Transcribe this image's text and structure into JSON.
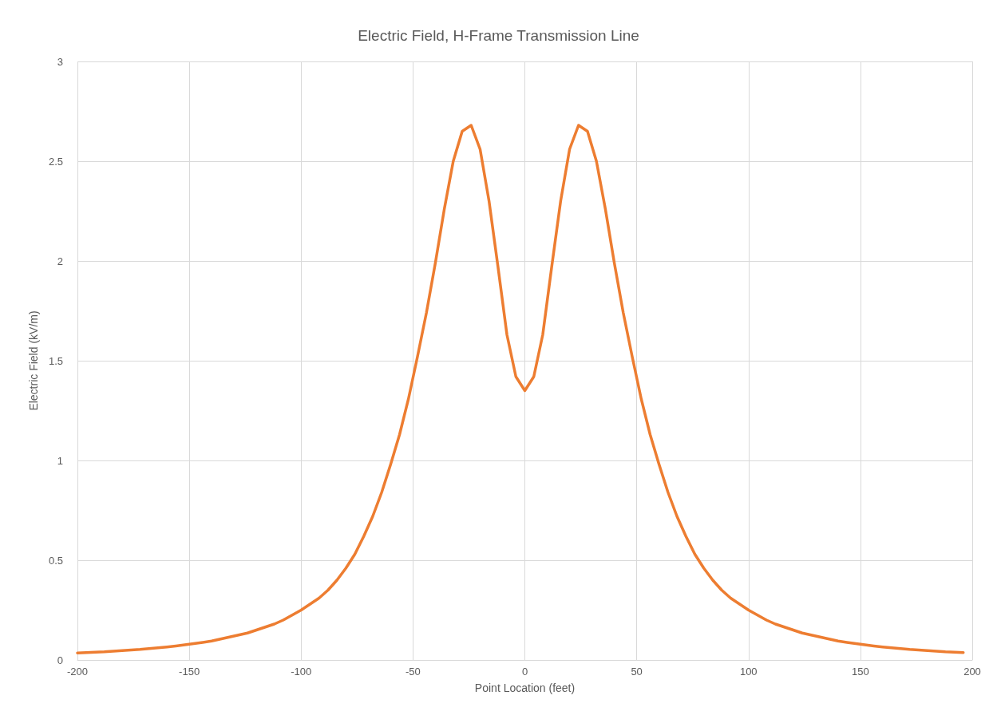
{
  "chart_data": {
    "type": "line",
    "title": "Electric Field, H-Frame Transmission Line",
    "xlabel": "Point Location (feet)",
    "ylabel": "Electric Field (kV/m)",
    "x": [
      -200,
      -196,
      -192,
      -188,
      -184,
      -180,
      -176,
      -172,
      -168,
      -164,
      -160,
      -156,
      -152,
      -148,
      -144,
      -140,
      -136,
      -132,
      -128,
      -124,
      -120,
      -116,
      -112,
      -108,
      -104,
      -100,
      -96,
      -92,
      -88,
      -84,
      -80,
      -76,
      -72,
      -68,
      -64,
      -60,
      -56,
      -52,
      -48,
      -44,
      -40,
      -36,
      -32,
      -28,
      -24,
      -20,
      -16,
      -12,
      -8,
      -4,
      0,
      4,
      8,
      12,
      16,
      20,
      24,
      28,
      32,
      36,
      40,
      44,
      48,
      52,
      56,
      60,
      64,
      68,
      72,
      76,
      80,
      84,
      88,
      92,
      96,
      100,
      104,
      108,
      112,
      116,
      120,
      124,
      128,
      132,
      136,
      140,
      144,
      148,
      152,
      156,
      160,
      164,
      168,
      172,
      176,
      180,
      184,
      188,
      192,
      196
    ],
    "series": [
      {
        "color": "#ed7d31",
        "values": [
          0.035,
          0.037,
          0.039,
          0.041,
          0.044,
          0.047,
          0.05,
          0.053,
          0.057,
          0.061,
          0.065,
          0.07,
          0.076,
          0.082,
          0.088,
          0.095,
          0.105,
          0.115,
          0.125,
          0.135,
          0.15,
          0.165,
          0.18,
          0.2,
          0.225,
          0.25,
          0.28,
          0.31,
          0.35,
          0.4,
          0.46,
          0.53,
          0.62,
          0.72,
          0.84,
          0.98,
          1.13,
          1.31,
          1.52,
          1.74,
          1.99,
          2.26,
          2.5,
          2.65,
          2.68,
          2.56,
          2.3,
          1.97,
          1.63,
          1.42,
          1.35,
          1.42,
          1.63,
          1.97,
          2.3,
          2.56,
          2.68,
          2.65,
          2.5,
          2.26,
          1.99,
          1.74,
          1.52,
          1.31,
          1.13,
          0.98,
          0.84,
          0.72,
          0.62,
          0.53,
          0.46,
          0.4,
          0.35,
          0.31,
          0.28,
          0.25,
          0.225,
          0.2,
          0.18,
          0.165,
          0.15,
          0.135,
          0.125,
          0.115,
          0.105,
          0.095,
          0.088,
          0.082,
          0.076,
          0.07,
          0.065,
          0.061,
          0.057,
          0.053,
          0.05,
          0.047,
          0.044,
          0.041,
          0.039,
          0.037
        ]
      }
    ],
    "xlim": [
      -200,
      200
    ],
    "xticks": [
      -200,
      -150,
      -100,
      -50,
      0,
      50,
      100,
      150,
      200
    ],
    "ylim": [
      0,
      3
    ],
    "yticks": [
      0,
      0.5,
      1,
      1.5,
      2,
      2.5,
      3
    ],
    "grid": true,
    "marker": "none",
    "line_style": "solid"
  }
}
